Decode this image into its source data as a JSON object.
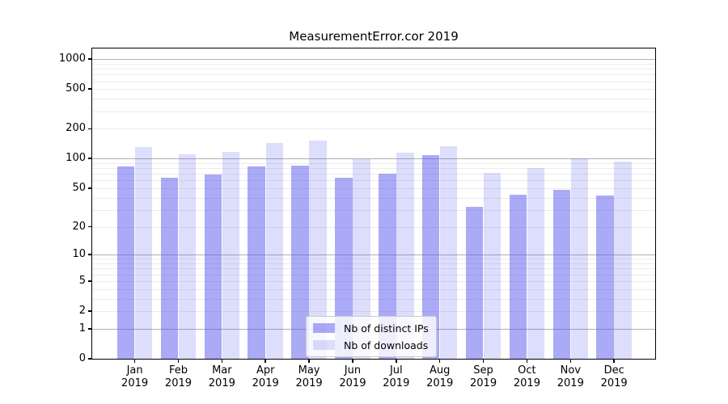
{
  "chart_data": {
    "type": "bar",
    "title": "MeasurementError.cor 2019",
    "y_scale": "log1p",
    "ymax": 1277,
    "ylabel": "",
    "xlabel": "",
    "categories": [
      "Jan",
      "Feb",
      "Mar",
      "Apr",
      "May",
      "Jun",
      "Jul",
      "Aug",
      "Sep",
      "Oct",
      "Nov",
      "Dec"
    ],
    "x_year_label": "2019",
    "y_ticks": [
      0,
      1,
      2,
      5,
      10,
      20,
      50,
      100,
      200,
      500,
      1000
    ],
    "series": [
      {
        "name": "Nb of distinct IPs",
        "color": "#5555ee",
        "alpha": 0.5,
        "rgba": "rgba(85,85,238,0.5)",
        "values": [
          84,
          64,
          69,
          84,
          85,
          64,
          70,
          109,
          32,
          43,
          48,
          42
        ]
      },
      {
        "name": "Nb of downloads",
        "color": "#5555ee",
        "alpha": 0.2,
        "rgba": "rgba(85,85,238,0.2)",
        "values": [
          130,
          111,
          116,
          144,
          152,
          98,
          115,
          134,
          71,
          80,
          101,
          93
        ]
      }
    ],
    "grid": {
      "major_values": [
        1,
        10,
        100,
        1000
      ],
      "major_color": "#b0b0b0",
      "minor_color": "#ebebeb"
    },
    "legend_position": "lower center",
    "background_color": "#ffffff"
  }
}
